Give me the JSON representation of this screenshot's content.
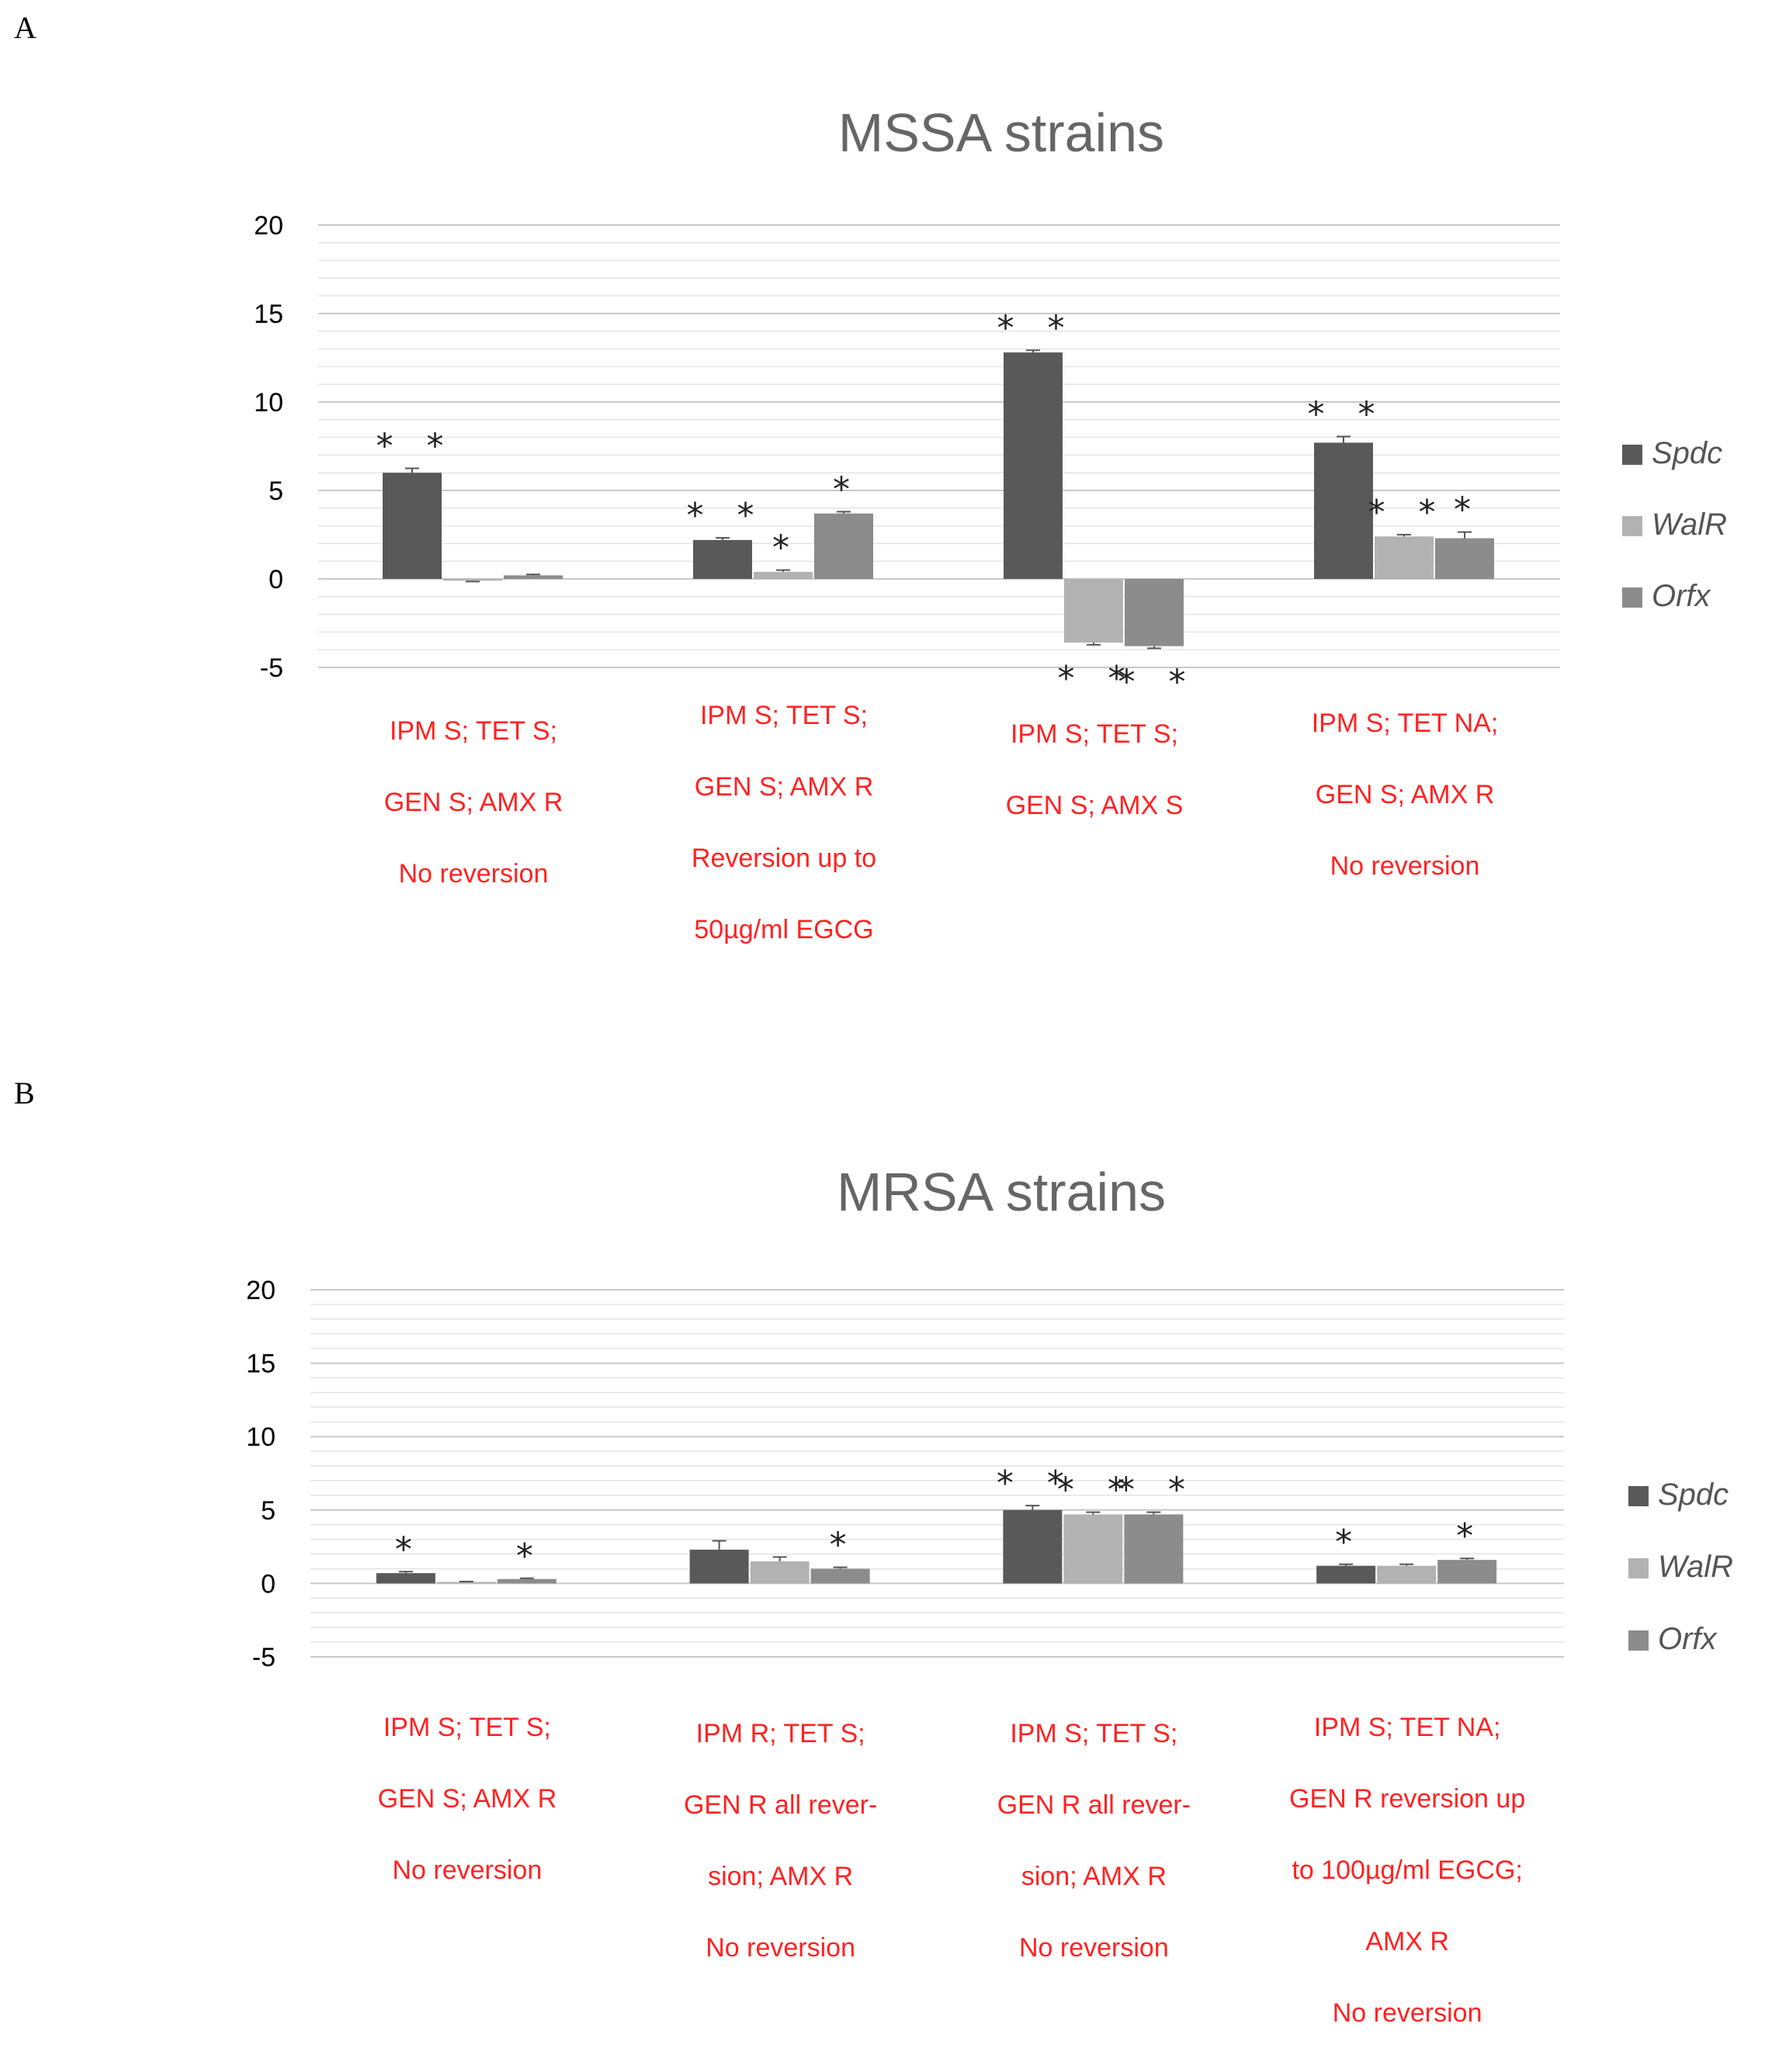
{
  "panel_a": {
    "letter": "A",
    "chart_data": {
      "type": "bar",
      "title": "MSSA strains",
      "categories": [
        [
          "IPM S; TET S;",
          "GEN S; AMX R",
          "No reversion"
        ],
        [
          "IPM S; TET S;",
          "GEN S; AMX R",
          "Reversion up to",
          "50µg/ml EGCG"
        ],
        [
          "IPM S; TET S;",
          "GEN S; AMX S"
        ],
        [
          "IPM S; TET NA;",
          "GEN S; AMX R",
          "No reversion"
        ]
      ],
      "series": [
        {
          "name": "Spdc",
          "color": "#595959",
          "values": [
            6.0,
            2.2,
            12.8,
            7.7
          ],
          "errors": [
            0.25,
            0.12,
            0.12,
            0.35
          ],
          "significance": [
            "**",
            "**",
            "**",
            "**"
          ]
        },
        {
          "name": "WalR",
          "color": "#b2b2b2",
          "values": [
            -0.1,
            0.4,
            -3.6,
            2.4
          ],
          "errors": [
            0.05,
            0.1,
            0.12,
            0.1
          ],
          "significance": [
            "",
            "*",
            "**",
            "**"
          ]
        },
        {
          "name": "Orfx",
          "color": "#8c8c8c",
          "values": [
            0.2,
            3.7,
            -3.8,
            2.3
          ],
          "errors": [
            0.05,
            0.1,
            0.12,
            0.35
          ],
          "significance": [
            "",
            "*",
            "**",
            "*"
          ]
        }
      ],
      "yticks": [
        20,
        15,
        10,
        5,
        0,
        -5
      ],
      "ylim": [
        -5,
        20
      ],
      "xlabel": "",
      "ylabel": "",
      "legend_position": "right"
    }
  },
  "panel_b": {
    "letter": "B",
    "chart_data": {
      "type": "bar",
      "title": "MRSA strains",
      "categories": [
        [
          "IPM S; TET S;",
          "GEN S; AMX R",
          "No reversion"
        ],
        [
          "IPM R; TET S;",
          "GEN R all rever-",
          "sion; AMX R",
          "No reversion"
        ],
        [
          "IPM S; TET S;",
          "GEN R all rever-",
          "sion; AMX R",
          "No reversion"
        ],
        [
          "IPM S; TET NA;",
          "GEN R reversion up",
          "to 100µg/ml EGCG;",
          "AMX R",
          "No reversion"
        ]
      ],
      "series": [
        {
          "name": "Spdc",
          "color": "#595959",
          "values": [
            0.7,
            2.3,
            5.0,
            1.2
          ],
          "errors": [
            0.1,
            0.6,
            0.3,
            0.1
          ],
          "significance": [
            "*",
            "",
            "**",
            "*"
          ]
        },
        {
          "name": "WalR",
          "color": "#b2b2b2",
          "values": [
            0.1,
            1.5,
            4.7,
            1.2
          ],
          "errors": [
            0.03,
            0.3,
            0.15,
            0.1
          ],
          "significance": [
            "",
            "",
            "**",
            ""
          ]
        },
        {
          "name": "Orfx",
          "color": "#8c8c8c",
          "values": [
            0.3,
            1.0,
            4.7,
            1.6
          ],
          "errors": [
            0.05,
            0.1,
            0.15,
            0.1
          ],
          "significance": [
            "*",
            "*",
            "**",
            "*"
          ]
        }
      ],
      "yticks": [
        20,
        15,
        10,
        5,
        0,
        -5
      ],
      "ylim": [
        -5,
        20
      ],
      "xlabel": "",
      "ylabel": "",
      "legend_position": "right"
    }
  }
}
